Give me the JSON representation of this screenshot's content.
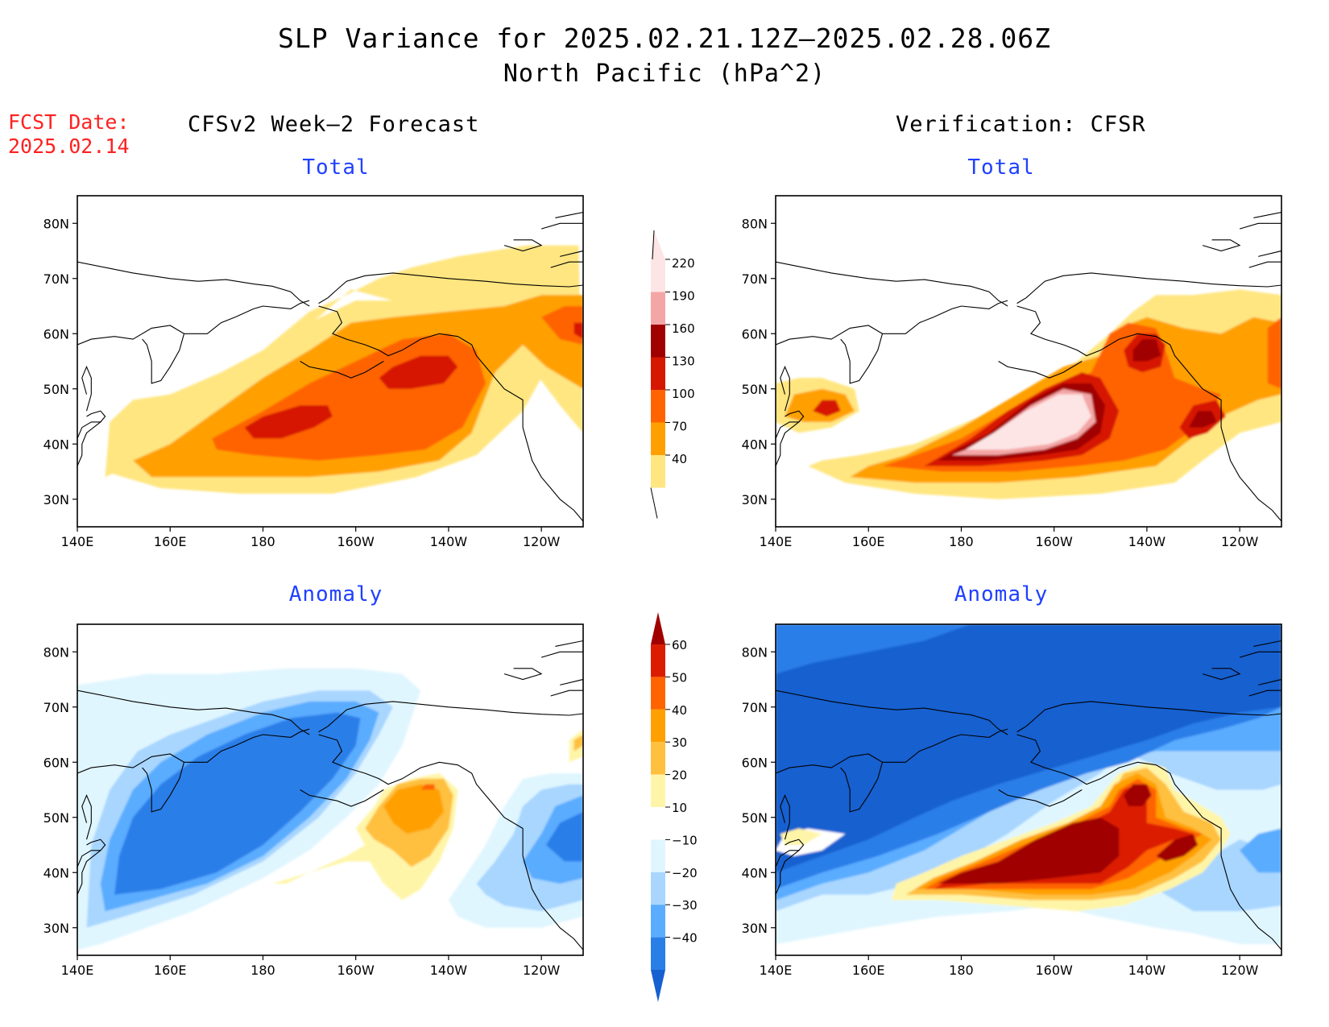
{
  "title": "SLP Variance for 2025.02.21.12Z–2025.02.28.06Z",
  "subtitle": "North Pacific (hPa^2)",
  "forecast": {
    "label": "FCST Date:",
    "date": "2025.02.14"
  },
  "columns": {
    "left": "CFSv2 Week–2 Forecast",
    "right": "Verification: CFSR"
  },
  "panels": {
    "top_left": "Total",
    "top_right": "Total",
    "bottom_left": "Anomaly",
    "bottom_right": "Anomaly"
  },
  "axes": {
    "lat_ticks": [
      "80N",
      "70N",
      "60N",
      "50N",
      "40N",
      "30N"
    ],
    "lat_values": [
      80,
      70,
      60,
      50,
      40,
      30
    ],
    "lon_ticks": [
      "140E",
      "160E",
      "180",
      "160W",
      "140W",
      "120W"
    ],
    "lon_values": [
      140,
      160,
      180,
      200,
      220,
      240
    ],
    "lon_range": [
      140,
      249
    ],
    "lat_range": [
      25,
      85
    ]
  },
  "colorbars": {
    "total": {
      "labels": [
        "220",
        "190",
        "160",
        "130",
        "100",
        "70",
        "40"
      ],
      "colors": [
        "#fde5e5",
        "#f4a6a6",
        "#a00000",
        "#d61800",
        "#ff6400",
        "#ffa000",
        "#ffe680"
      ]
    },
    "anomaly": {
      "labels": [
        "60",
        "50",
        "40",
        "30",
        "20",
        "10",
        "−10",
        "−20",
        "−30",
        "−40"
      ],
      "colors": [
        "#a00000",
        "#dc1c00",
        "#ff6400",
        "#ffa000",
        "#ffc040",
        "#fff5a8",
        "#ffffff",
        "#e0f6ff",
        "#a8d6ff",
        "#5aacff",
        "#2a7ee8",
        "#1660d0"
      ]
    }
  },
  "colors": {
    "title_red": "#ff2020",
    "panel_title_blue": "#2040ff"
  },
  "chart_data": [
    {
      "type": "heatmap",
      "panel": "top_left",
      "title": "Total",
      "units": "hPa^2",
      "levels": [
        40,
        70,
        100,
        130,
        160,
        190,
        220
      ],
      "features": [
        {
          "center": [
            183,
            47
          ],
          "peak": 130
        },
        {
          "center": [
            213,
            55
          ],
          "peak": 130
        },
        {
          "center": [
            245,
            60
          ],
          "peak": 100
        }
      ]
    },
    {
      "type": "heatmap",
      "panel": "top_right",
      "title": "Total",
      "units": "hPa^2",
      "levels": [
        40,
        70,
        100,
        130,
        160,
        190,
        220
      ],
      "features": [
        {
          "center": [
            197,
            45
          ],
          "peak": 220
        },
        {
          "center": [
            218,
            58
          ],
          "peak": 160
        },
        {
          "center": [
            232,
            47
          ],
          "peak": 160
        },
        {
          "center": [
            152,
            48
          ],
          "peak": 130
        },
        {
          "center": [
            245,
            57
          ],
          "peak": 100
        }
      ]
    },
    {
      "type": "heatmap",
      "panel": "bottom_left",
      "title": "Anomaly",
      "units": "hPa^2",
      "levels": [
        -40,
        -30,
        -20,
        -10,
        10,
        20,
        30,
        40,
        50,
        60
      ],
      "features": [
        {
          "center": [
            172,
            53
          ],
          "peak": -40
        },
        {
          "center": [
            205,
            50
          ],
          "peak": 30
        },
        {
          "center": [
            244,
            49
          ],
          "peak": -40
        }
      ]
    },
    {
      "type": "heatmap",
      "panel": "bottom_right",
      "title": "Anomaly",
      "units": "hPa^2",
      "levels": [
        -40,
        -30,
        -20,
        -10,
        10,
        20,
        30,
        40,
        50,
        60
      ],
      "features": [
        {
          "center": [
            175,
            63
          ],
          "peak": -40
        },
        {
          "center": [
            190,
            40
          ],
          "peak": 60
        },
        {
          "center": [
            218,
            56
          ],
          "peak": 60
        },
        {
          "center": [
            232,
            45
          ],
          "peak": 60
        }
      ]
    }
  ]
}
